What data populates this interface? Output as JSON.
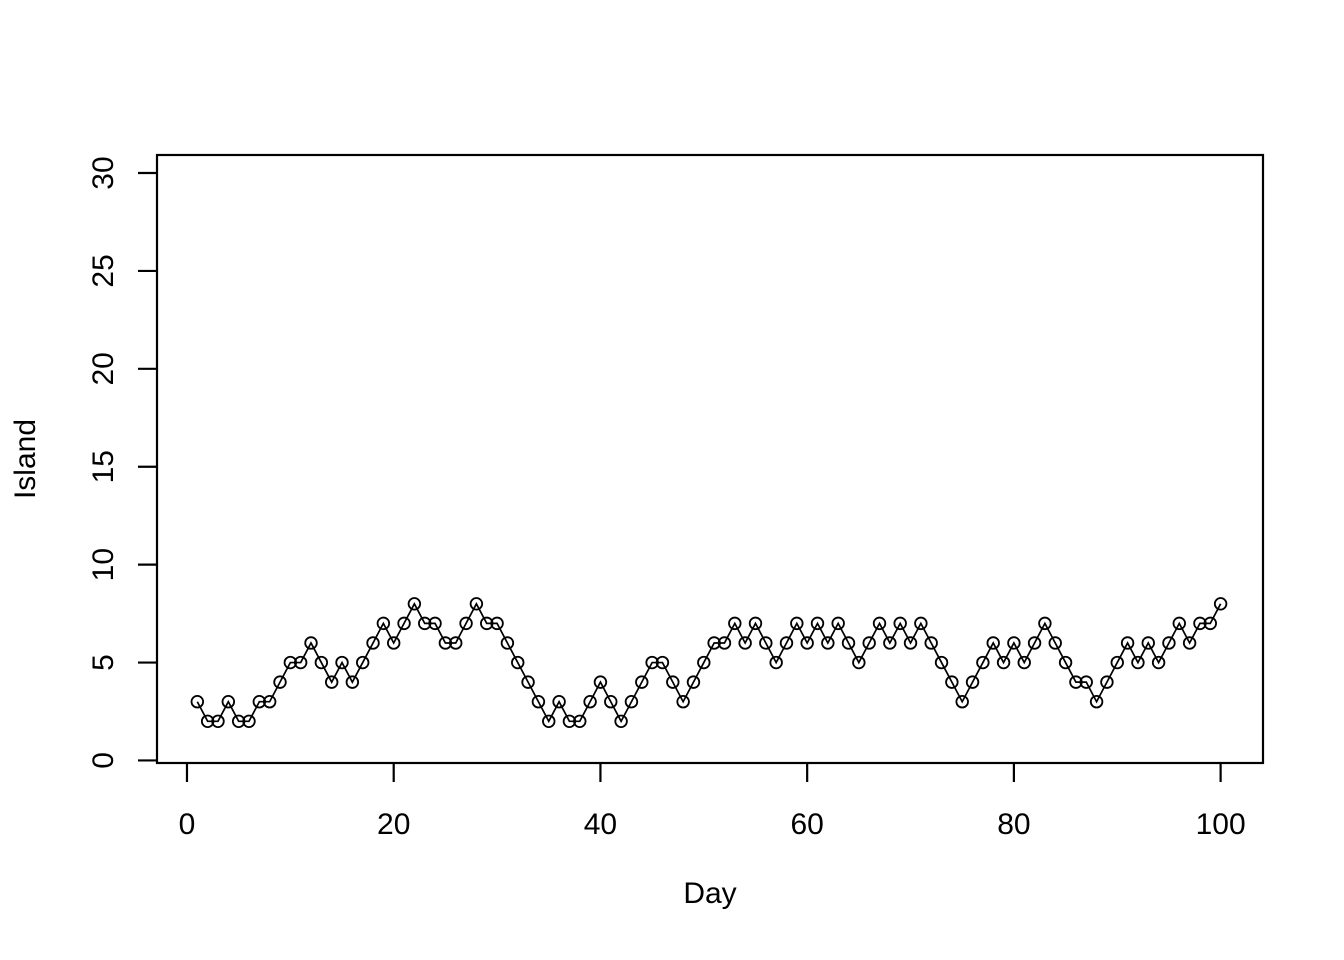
{
  "chart_data": {
    "type": "line",
    "style": "r-base-plot-type-o",
    "title": "",
    "xlabel": "Day",
    "ylabel": "Island",
    "marker": "open-circle",
    "line_color": "#000000",
    "marker_color": "#000000",
    "background_color": "#ffffff",
    "grid": false,
    "legend": "none",
    "x_axis": {
      "ticks": [
        0,
        20,
        40,
        60,
        80,
        100
      ],
      "tick_labels": [
        "0",
        "20",
        "40",
        "60",
        "80",
        "100"
      ],
      "range": [
        -2.9,
        104.1
      ]
    },
    "y_axis": {
      "ticks": [
        0,
        5,
        10,
        15,
        20,
        25,
        30
      ],
      "tick_labels": [
        "0",
        "5",
        "10",
        "15",
        "20",
        "25",
        "30"
      ],
      "range": [
        -0.13,
        30.92
      ]
    },
    "x": [
      1,
      2,
      3,
      4,
      5,
      6,
      7,
      8,
      9,
      10,
      11,
      12,
      13,
      14,
      15,
      16,
      17,
      18,
      19,
      20,
      21,
      22,
      23,
      24,
      25,
      26,
      27,
      28,
      29,
      30,
      31,
      32,
      33,
      34,
      35,
      36,
      37,
      38,
      39,
      40,
      41,
      42,
      43,
      44,
      45,
      46,
      47,
      48,
      49,
      50,
      51,
      52,
      53,
      54,
      55,
      56,
      57,
      58,
      59,
      60,
      61,
      62,
      63,
      64,
      65,
      66,
      67,
      68,
      69,
      70,
      71,
      72,
      73,
      74,
      75,
      76,
      77,
      78,
      79,
      80,
      81,
      82,
      83,
      84,
      85,
      86,
      87,
      88,
      89,
      90,
      91,
      92,
      93,
      94,
      95,
      96,
      97,
      98,
      99,
      100
    ],
    "y": [
      3,
      2,
      2,
      3,
      2,
      2,
      3,
      3,
      4,
      5,
      5,
      6,
      5,
      4,
      5,
      4,
      5,
      6,
      7,
      6,
      7,
      8,
      7,
      7,
      6,
      6,
      7,
      8,
      7,
      7,
      6,
      5,
      4,
      3,
      2,
      3,
      2,
      2,
      3,
      4,
      3,
      2,
      3,
      4,
      5,
      5,
      4,
      3,
      4,
      5,
      6,
      6,
      7,
      6,
      7,
      6,
      5,
      6,
      7,
      6,
      7,
      6,
      7,
      6,
      5,
      6,
      7,
      6,
      7,
      6,
      7,
      6,
      5,
      4,
      3,
      4,
      5,
      6,
      5,
      6,
      5,
      6,
      7,
      6,
      5,
      4,
      4,
      3,
      4,
      5,
      6,
      5,
      6,
      5,
      6,
      7,
      6,
      7,
      7,
      8
    ]
  }
}
